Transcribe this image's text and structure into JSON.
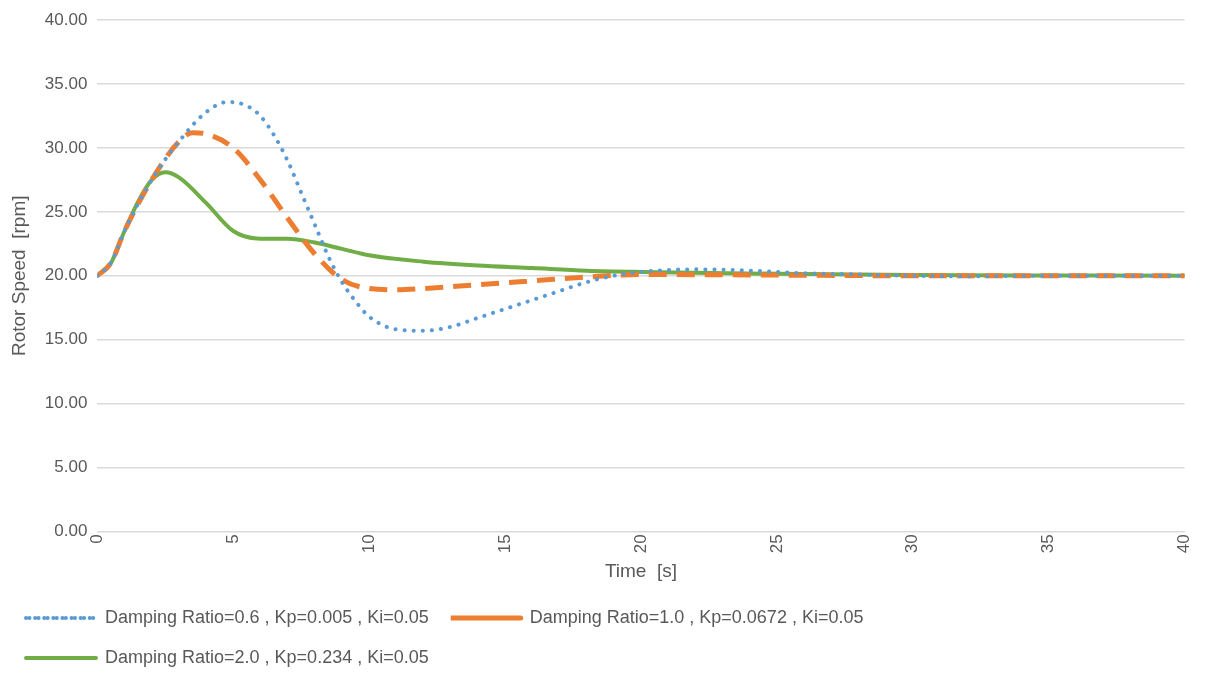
{
  "chart_data": {
    "type": "line",
    "xlabel": "Time  [s]",
    "ylabel": "Rotor Speed  [rpm]",
    "xlim": [
      0,
      40
    ],
    "xticks": [
      0,
      5,
      10,
      15,
      20,
      25,
      30,
      35,
      40
    ],
    "ylim": [
      0,
      40
    ],
    "yticks": [
      {
        "value": 0,
        "label": "0.00"
      },
      {
        "value": 5,
        "label": "5.00"
      },
      {
        "value": 10,
        "label": "10.00"
      },
      {
        "value": 15,
        "label": "15.00"
      },
      {
        "value": 20,
        "label": "20.00"
      },
      {
        "value": 25,
        "label": "25.00"
      },
      {
        "value": 30,
        "label": "30.00"
      },
      {
        "value": 35,
        "label": "35.00"
      },
      {
        "value": 40,
        "label": "40.00"
      }
    ],
    "grid": "y",
    "legend": "bottom",
    "marker": "none",
    "series": [
      {
        "name": "Damping Ratio=0.6 , Kp=0.005 , Ki=0.05",
        "color": "#5b9bd5",
        "line_style": "dotted",
        "x": [
          0,
          0.5,
          1,
          2,
          3,
          4,
          4.8,
          5.5,
          6,
          6.5,
          7,
          7.5,
          8,
          8.5,
          9,
          9.5,
          10,
          11,
          12,
          13,
          14,
          15,
          16,
          17,
          18,
          19,
          20,
          22,
          24,
          26,
          28,
          30,
          32,
          35,
          40
        ],
        "values": [
          20,
          21,
          23.5,
          27.5,
          30.5,
          32.8,
          33.6,
          33.3,
          32.5,
          31,
          29,
          26.5,
          24,
          21.5,
          19.5,
          18,
          16.8,
          15.8,
          15.7,
          16,
          16.7,
          17.4,
          18.1,
          18.8,
          19.5,
          20,
          20.3,
          20.5,
          20.4,
          20.2,
          20.1,
          20,
          19.95,
          20,
          20
        ]
      },
      {
        "name": "Damping Ratio=1.0 , Kp=0.0672 , Ki=0.05",
        "color": "#ed7d31",
        "line_style": "dashed",
        "x": [
          0,
          0.5,
          1,
          2,
          3,
          3.5,
          4,
          5,
          6,
          7,
          8,
          9,
          10,
          11,
          12,
          14,
          16,
          18,
          20,
          25,
          30,
          40
        ],
        "values": [
          20,
          21,
          23.5,
          27.5,
          30.5,
          31.2,
          31.1,
          30,
          27.5,
          24.5,
          21.7,
          19.7,
          19,
          18.9,
          19,
          19.3,
          19.6,
          19.9,
          20.1,
          20.05,
          20,
          20
        ]
      },
      {
        "name": "Damping Ratio=2.0 , Kp=0.234 , Ki=0.05",
        "color": "#70ad47",
        "line_style": "solid",
        "x": [
          0,
          0.5,
          1,
          1.5,
          2,
          2.5,
          3,
          4,
          5,
          6,
          7,
          8,
          9,
          10,
          12,
          14,
          16,
          18,
          20,
          25,
          30,
          40
        ],
        "values": [
          20,
          21,
          23.5,
          25.8,
          27.5,
          28.1,
          27.7,
          25.7,
          23.5,
          22.9,
          22.9,
          22.6,
          22.1,
          21.6,
          21.1,
          20.8,
          20.6,
          20.4,
          20.3,
          20.15,
          20.05,
          20
        ]
      }
    ]
  }
}
